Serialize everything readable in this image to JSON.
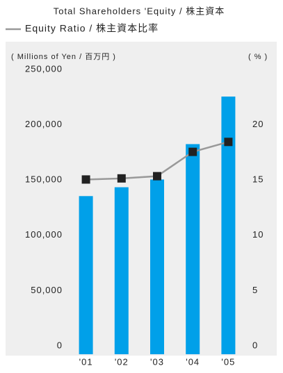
{
  "chart_data": {
    "type": "bar_line",
    "title": "Total Shareholders 'Equity / 株主資本",
    "y_label": "( Millions of Yen / 百万円 )",
    "y2_label": "( % )",
    "categories": [
      "'01",
      "'02",
      "'03",
      "'04",
      "'05"
    ],
    "series": [
      {
        "name": "Total Shareholders 'Equity / 株主資本",
        "type": "bar",
        "color": "#00a0e9",
        "values": [
          138000,
          146000,
          153000,
          185000,
          228000
        ]
      },
      {
        "name": "Equity Ratio / 株主資本比率",
        "type": "line",
        "axis": "y2",
        "color": "#999999",
        "marker_color": "#222222",
        "values": [
          15.3,
          15.4,
          15.6,
          17.8,
          18.7
        ]
      }
    ],
    "ylim": [
      0,
      250000
    ],
    "yticks": [
      0,
      {
        "value": 50000,
        "label": "50,000"
      },
      {
        "value": 100000,
        "label": "100,000"
      },
      {
        "value": 150000,
        "label": "150,000"
      },
      {
        "value": 200000,
        "label": "200,000"
      },
      {
        "value": 250000,
        "label": "250,000"
      }
    ],
    "y2lim": [
      0,
      25
    ],
    "y2ticks": [
      0,
      5,
      10,
      15,
      20
    ]
  }
}
